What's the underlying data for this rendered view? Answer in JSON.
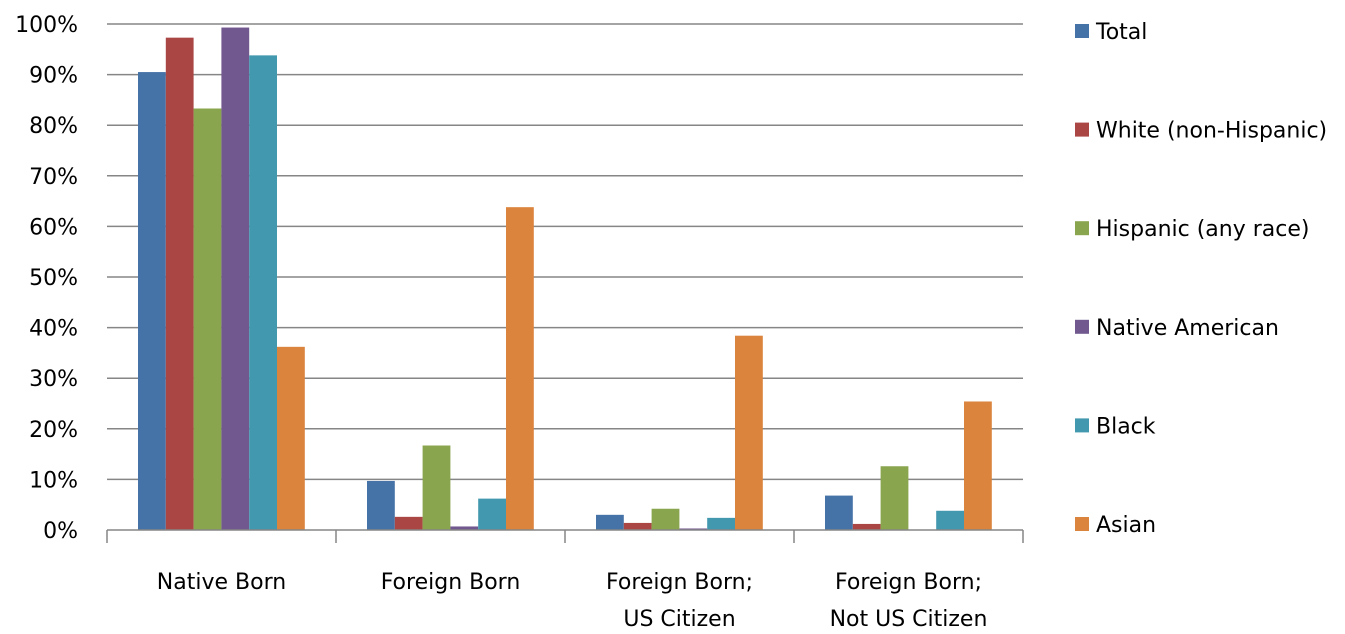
{
  "chart_data": {
    "type": "bar",
    "title": "",
    "xlabel": "",
    "ylabel": "",
    "ylim": [
      0,
      100
    ],
    "yticks": [
      "0%",
      "10%",
      "20%",
      "30%",
      "40%",
      "50%",
      "60%",
      "70%",
      "80%",
      "90%",
      "100%"
    ],
    "grid": true,
    "legend_position": "right",
    "categories": [
      [
        "Native Born"
      ],
      [
        "Foreign Born"
      ],
      [
        "Foreign Born;",
        "US Citizen"
      ],
      [
        "Foreign Born;",
        "Not US Citizen"
      ]
    ],
    "series": [
      {
        "name": "Total",
        "color": "#4572A7",
        "values": [
          90.5,
          9.7,
          3.0,
          6.8
        ]
      },
      {
        "name": "White (non-Hispanic)",
        "color": "#AA4643",
        "values": [
          97.3,
          2.6,
          1.4,
          1.2
        ]
      },
      {
        "name": "Hispanic (any race)",
        "color": "#89A54E",
        "values": [
          83.3,
          16.7,
          4.2,
          12.6
        ]
      },
      {
        "name": "Native American",
        "color": "#71588F",
        "values": [
          99.3,
          0.7,
          0.3,
          0.0
        ]
      },
      {
        "name": "Black",
        "color": "#4198AF",
        "values": [
          93.8,
          6.2,
          2.4,
          3.8
        ]
      },
      {
        "name": "Asian",
        "color": "#DB843D",
        "values": [
          36.2,
          63.8,
          38.4,
          25.4
        ]
      }
    ]
  }
}
